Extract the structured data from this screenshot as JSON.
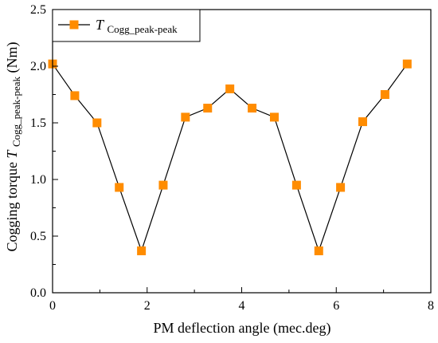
{
  "chart_data": {
    "type": "line",
    "title": "",
    "xlabel": "PM deflection angle (mec.deg)",
    "ylabel": {
      "prefix": "Cogging torque ",
      "symbol": "T",
      "subscript": "Cogg_peak-peak",
      "suffix": " (Nm)"
    },
    "xlim": [
      0,
      8
    ],
    "ylim": [
      0,
      2.5
    ],
    "xticks": [
      0,
      2,
      4,
      6,
      8
    ],
    "yticks": [
      0.0,
      0.5,
      1.0,
      1.5,
      2.0,
      2.5
    ],
    "xtick_labels": [
      "0",
      "2",
      "4",
      "6",
      "8"
    ],
    "ytick_labels": [
      "0.0",
      "0.5",
      "1.0",
      "1.5",
      "2.0",
      "2.5"
    ],
    "grid": false,
    "legend_position": "top-left",
    "series": [
      {
        "name": {
          "symbol": "T",
          "subscript": "Cogg_peak-peak"
        },
        "line_color": "#000000",
        "marker_fill": "#ff8c00",
        "marker_stroke": "#ff8c00",
        "x": [
          0,
          0.47,
          0.94,
          1.41,
          1.88,
          2.34,
          2.81,
          3.28,
          3.75,
          4.22,
          4.69,
          5.16,
          5.63,
          6.09,
          6.56,
          7.03,
          7.5
        ],
        "y": [
          2.02,
          1.74,
          1.5,
          0.93,
          0.37,
          0.95,
          1.55,
          1.63,
          1.8,
          1.63,
          1.55,
          0.95,
          0.37,
          0.93,
          1.51,
          1.75,
          2.02
        ]
      }
    ]
  }
}
